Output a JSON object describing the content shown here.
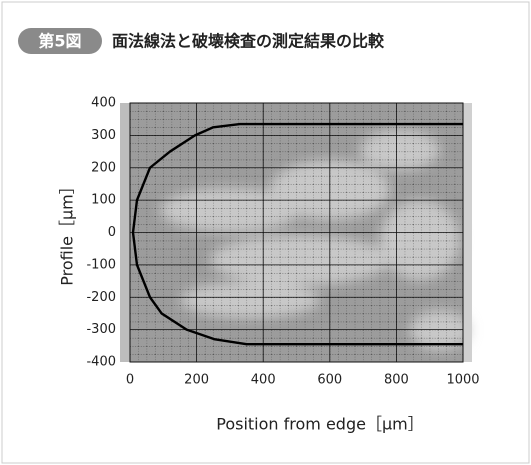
{
  "chart_data": {
    "type": "line",
    "figure_label": "第5図",
    "title": "面法線法と破壊検査の測定結果の比較",
    "x_label": "Position from edge［μm］",
    "y_label": "Profile［μm］",
    "x": [
      1000,
      330,
      250,
      195,
      120,
      60,
      21,
      9,
      21,
      60,
      95,
      170,
      255,
      350,
      1000
    ],
    "series": [
      {
        "color": "#000000",
        "values": [
          335,
          335,
          325,
          300,
          250,
          200,
          100,
          0,
          -100,
          -200,
          -250,
          -300,
          -330,
          -345,
          -345
        ]
      }
    ],
    "xlim": [
      0,
      1000
    ],
    "xticks": [
      0,
      200,
      400,
      600,
      800,
      1000
    ],
    "ylim": [
      -400,
      400
    ],
    "yticks": [
      -400,
      -300,
      -200,
      -100,
      0,
      100,
      200,
      300,
      400
    ],
    "grid": true
  }
}
